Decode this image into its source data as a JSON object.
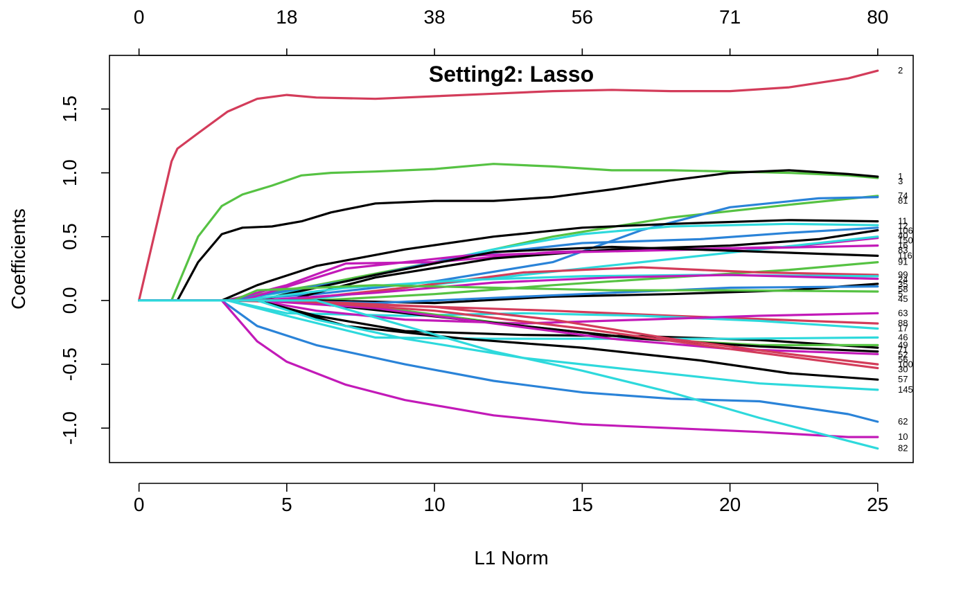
{
  "chart_data": {
    "type": "line",
    "title": "Setting2: Lasso",
    "xlabel": "L1 Norm",
    "ylabel": "Coefficients",
    "xlim": [
      -1.0,
      26.2
    ],
    "ylim": [
      -1.27,
      1.92
    ],
    "x_ticks": [
      0,
      5,
      10,
      15,
      20,
      25
    ],
    "x_tick_labels": [
      "0",
      "5",
      "10",
      "15",
      "20",
      "25"
    ],
    "y_ticks": [
      -1.0,
      -0.5,
      0.0,
      0.5,
      1.0,
      1.5
    ],
    "y_tick_labels": [
      "-1.0",
      "-0.5",
      "0.0",
      "0.5",
      "1.0",
      "1.5"
    ],
    "top_axis": {
      "x_positions": [
        0,
        5,
        10,
        15,
        20,
        25
      ],
      "labels": [
        "0",
        "18",
        "38",
        "56",
        "71",
        "80"
      ]
    },
    "grid": false,
    "series": [
      {
        "name": "2",
        "color": "#d33c5a",
        "x": [
          0,
          1.1,
          1.3,
          2,
          3,
          4,
          5,
          6,
          8,
          10,
          12,
          14,
          16,
          18,
          20,
          22,
          24,
          25
        ],
        "y": [
          0,
          1.09,
          1.19,
          1.31,
          1.48,
          1.58,
          1.61,
          1.59,
          1.58,
          1.6,
          1.62,
          1.64,
          1.65,
          1.64,
          1.64,
          1.67,
          1.74,
          1.8
        ]
      },
      {
        "name": "3",
        "color": "#56c243",
        "x": [
          0,
          1.1,
          2,
          2.8,
          3.5,
          4.5,
          5.5,
          6.5,
          8,
          10,
          12,
          14,
          16,
          18,
          20,
          22,
          24,
          25
        ],
        "y": [
          0,
          0,
          0.5,
          0.74,
          0.83,
          0.9,
          0.98,
          1.0,
          1.01,
          1.03,
          1.07,
          1.05,
          1.02,
          1.02,
          1.01,
          1.0,
          0.98,
          0.96
        ]
      },
      {
        "name": "1",
        "color": "#000000",
        "x": [
          0,
          1.3,
          2,
          2.8,
          3.5,
          4.5,
          5.5,
          6.5,
          8,
          10,
          12,
          14,
          16,
          18,
          20,
          22,
          24,
          25
        ],
        "y": [
          0,
          0,
          0.3,
          0.52,
          0.57,
          0.58,
          0.62,
          0.69,
          0.76,
          0.78,
          0.78,
          0.81,
          0.87,
          0.94,
          1.0,
          1.02,
          0.99,
          0.97
        ]
      },
      {
        "name": "74",
        "color": "#56c243",
        "x": [
          0,
          2.8,
          6,
          10,
          14,
          18,
          22,
          25
        ],
        "y": [
          0,
          0,
          0.12,
          0.3,
          0.5,
          0.65,
          0.75,
          0.82
        ]
      },
      {
        "name": "81",
        "color": "#2a83d8",
        "x": [
          0,
          2.8,
          6,
          10,
          14,
          17,
          20,
          23,
          25
        ],
        "y": [
          0,
          0,
          0.05,
          0.15,
          0.3,
          0.55,
          0.73,
          0.8,
          0.81
        ]
      },
      {
        "name": "11",
        "color": "#000000",
        "x": [
          0,
          2.8,
          4,
          6,
          9,
          12,
          15,
          18,
          22,
          25
        ],
        "y": [
          0,
          0,
          0.12,
          0.27,
          0.4,
          0.5,
          0.57,
          0.6,
          0.63,
          0.62
        ]
      },
      {
        "name": "12",
        "color": "#2ed9dc",
        "x": [
          0,
          3,
          6,
          9,
          12,
          15,
          18,
          22,
          25
        ],
        "y": [
          0,
          0,
          0.1,
          0.25,
          0.4,
          0.52,
          0.58,
          0.6,
          0.59
        ]
      },
      {
        "name": "106",
        "color": "#2a83d8",
        "x": [
          0,
          3,
          7,
          11,
          15,
          19,
          22,
          25
        ],
        "y": [
          0,
          0,
          0.15,
          0.35,
          0.45,
          0.48,
          0.53,
          0.57
        ]
      },
      {
        "name": "16",
        "color": "#c21ab8",
        "x": [
          0,
          3,
          5,
          7,
          10,
          14,
          18,
          22,
          25
        ],
        "y": [
          0,
          0,
          0.12,
          0.29,
          0.3,
          0.38,
          0.4,
          0.42,
          0.49
        ]
      },
      {
        "name": "40",
        "color": "#000000",
        "x": [
          0,
          5,
          8,
          12,
          16,
          20,
          23,
          25
        ],
        "y": [
          0,
          0,
          0.18,
          0.33,
          0.4,
          0.43,
          0.48,
          0.55
        ]
      },
      {
        "name": "150",
        "color": "#2ed9dc",
        "x": [
          0,
          5.5,
          9,
          13,
          17,
          21,
          25
        ],
        "y": [
          0,
          0,
          0.1,
          0.2,
          0.3,
          0.4,
          0.5
        ]
      },
      {
        "name": "83",
        "color": "#c21ab8",
        "x": [
          0,
          3.5,
          7,
          11,
          15,
          19,
          25
        ],
        "y": [
          0,
          0,
          0.25,
          0.35,
          0.38,
          0.4,
          0.43
        ]
      },
      {
        "name": "116",
        "color": "#000000",
        "x": [
          0,
          4,
          8,
          12,
          16,
          20,
          25
        ],
        "y": [
          0,
          0,
          0.2,
          0.38,
          0.42,
          0.39,
          0.35
        ]
      },
      {
        "name": "91",
        "color": "#56c243",
        "x": [
          0,
          6,
          10,
          14,
          18,
          22,
          25
        ],
        "y": [
          0,
          0,
          0.05,
          0.12,
          0.18,
          0.24,
          0.3
        ]
      },
      {
        "name": "99",
        "color": "#d33c5a",
        "x": [
          0,
          5,
          9,
          13,
          17,
          21,
          25
        ],
        "y": [
          0,
          0,
          0.1,
          0.22,
          0.26,
          0.22,
          0.2
        ]
      },
      {
        "name": "24",
        "color": "#2ed9dc",
        "x": [
          0,
          3.5,
          7,
          11,
          15,
          19,
          25
        ],
        "y": [
          0,
          0,
          0.1,
          0.16,
          0.19,
          0.2,
          0.19
        ]
      },
      {
        "name": "35",
        "color": "#c21ab8",
        "x": [
          0,
          4,
          8,
          12,
          16,
          20,
          25
        ],
        "y": [
          0,
          0,
          0.06,
          0.14,
          0.18,
          0.2,
          0.17
        ]
      },
      {
        "name": "58",
        "color": "#000000",
        "x": [
          0,
          6,
          10,
          14,
          18,
          22,
          25
        ],
        "y": [
          0,
          0,
          -0.02,
          0.03,
          0.05,
          0.08,
          0.13
        ]
      },
      {
        "name": "5",
        "color": "#2a83d8",
        "x": [
          0,
          4,
          8,
          12,
          16,
          20,
          25
        ],
        "y": [
          0,
          0,
          -0.02,
          0.02,
          0.06,
          0.1,
          0.11
        ]
      },
      {
        "name": "45",
        "color": "#56c243",
        "x": [
          0,
          3.2,
          4,
          8,
          12,
          16,
          20,
          25
        ],
        "y": [
          0,
          0,
          0.08,
          0.12,
          0.1,
          0.08,
          0.08,
          0.07
        ]
      },
      {
        "name": "88",
        "color": "#d33c5a",
        "x": [
          0,
          3,
          6,
          10,
          14,
          18,
          25
        ],
        "y": [
          0,
          0,
          -0.02,
          -0.05,
          -0.08,
          -0.12,
          -0.18
        ]
      },
      {
        "name": "17",
        "color": "#2ed9dc",
        "x": [
          0,
          3,
          5,
          9,
          13,
          17,
          21,
          25
        ],
        "y": [
          0,
          0,
          -0.1,
          -0.12,
          -0.1,
          -0.12,
          -0.16,
          -0.22
        ]
      },
      {
        "name": "63",
        "color": "#c21ab8",
        "x": [
          0,
          4,
          6,
          9,
          13,
          17,
          21,
          25
        ],
        "y": [
          0,
          0,
          -0.08,
          -0.15,
          -0.18,
          -0.15,
          -0.12,
          -0.1
        ]
      },
      {
        "name": "71",
        "color": "#000000",
        "x": [
          0,
          4,
          6,
          9,
          13,
          17,
          21,
          25
        ],
        "y": [
          0,
          0,
          -0.12,
          -0.24,
          -0.27,
          -0.28,
          -0.31,
          -0.37
        ]
      },
      {
        "name": "46",
        "color": "#2ed9dc",
        "x": [
          0,
          3,
          5,
          8,
          12,
          16,
          20,
          25
        ],
        "y": [
          0,
          0,
          -0.12,
          -0.29,
          -0.3,
          -0.3,
          -0.3,
          -0.29
        ]
      },
      {
        "name": "49",
        "color": "#56c243",
        "x": [
          0,
          5,
          9,
          13,
          17,
          21,
          25
        ],
        "y": [
          0,
          0,
          -0.08,
          -0.2,
          -0.3,
          -0.35,
          -0.35
        ]
      },
      {
        "name": "52",
        "color": "#000000",
        "x": [
          0,
          5,
          9,
          13,
          17,
          21,
          25
        ],
        "y": [
          0,
          0,
          -0.1,
          -0.2,
          -0.3,
          -0.36,
          -0.4
        ]
      },
      {
        "name": "56",
        "color": "#c21ab8",
        "x": [
          0,
          4,
          8,
          12,
          16,
          20,
          25
        ],
        "y": [
          0,
          0,
          -0.06,
          -0.18,
          -0.3,
          -0.38,
          -0.42
        ]
      },
      {
        "name": "100",
        "color": "#d33c5a",
        "x": [
          0,
          5,
          10,
          14,
          18,
          22,
          25
        ],
        "y": [
          0,
          0,
          -0.05,
          -0.15,
          -0.3,
          -0.42,
          -0.5
        ]
      },
      {
        "name": "30",
        "color": "#d33c5a",
        "x": [
          0,
          5,
          10,
          15,
          20,
          25
        ],
        "y": [
          0,
          0,
          -0.08,
          -0.22,
          -0.38,
          -0.53
        ]
      },
      {
        "name": "57",
        "color": "#000000",
        "x": [
          0,
          4,
          7,
          11,
          15,
          19,
          22,
          25
        ],
        "y": [
          0,
          0,
          -0.2,
          -0.3,
          -0.37,
          -0.47,
          -0.57,
          -0.62
        ]
      },
      {
        "name": "145",
        "color": "#2ed9dc",
        "x": [
          0,
          4,
          6,
          9,
          13,
          17,
          21,
          25
        ],
        "y": [
          0,
          0,
          -0.15,
          -0.3,
          -0.45,
          -0.55,
          -0.65,
          -0.7
        ]
      },
      {
        "name": "62",
        "color": "#2a83d8",
        "x": [
          0,
          2.8,
          4,
          6,
          9,
          12,
          15,
          18,
          21,
          24,
          25
        ],
        "y": [
          0,
          0,
          -0.2,
          -0.35,
          -0.5,
          -0.63,
          -0.72,
          -0.77,
          -0.79,
          -0.89,
          -0.95
        ]
      },
      {
        "name": "10",
        "color": "#c21ab8",
        "x": [
          0,
          2.8,
          4,
          5,
          7,
          9,
          12,
          15,
          18,
          21,
          24,
          25
        ],
        "y": [
          0,
          0,
          -0.32,
          -0.48,
          -0.66,
          -0.78,
          -0.9,
          -0.97,
          -1.0,
          -1.03,
          -1.07,
          -1.07
        ]
      },
      {
        "name": "82",
        "color": "#2ed9dc",
        "x": [
          0,
          6,
          9,
          12,
          15,
          18,
          21,
          24,
          25
        ],
        "y": [
          0,
          0,
          -0.2,
          -0.4,
          -0.55,
          -0.72,
          -0.92,
          -1.1,
          -1.16
        ]
      }
    ]
  }
}
